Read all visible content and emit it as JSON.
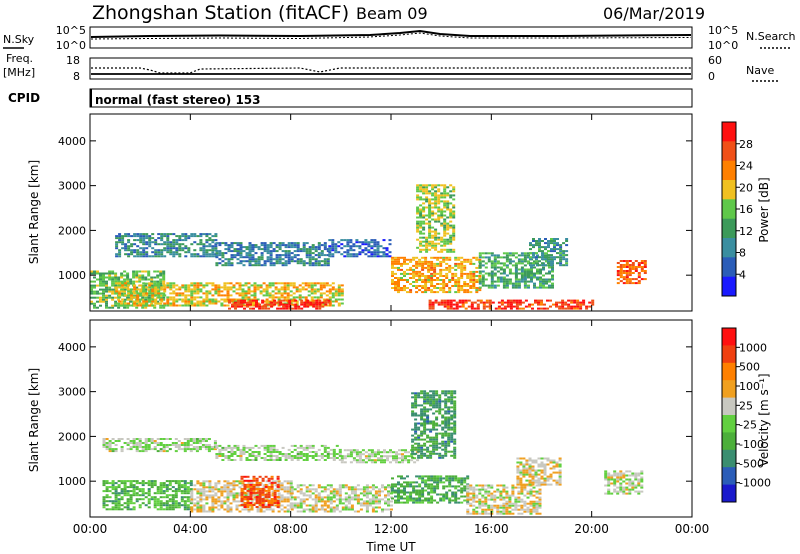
{
  "header": {
    "station": "Zhongshan Station (fitACF)",
    "beam": "Beam 09",
    "date": "06/Mar/2019"
  },
  "strip1": {
    "left_label": "N.Sky",
    "right_label": "N.Search",
    "left_ticks": [
      "10^5",
      "10^0"
    ],
    "right_ticks": [
      "10^5",
      "10^0"
    ]
  },
  "strip2": {
    "left_label_1": "Freq.",
    "left_label_2": "[MHz]",
    "right_label": "Nave",
    "left_ticks": [
      "18",
      "8"
    ],
    "right_ticks": [
      "60",
      "0"
    ]
  },
  "cpid": {
    "label": "CPID",
    "text": "normal (fast stereo) 153"
  },
  "colors": {
    "power_scale": [
      "#1a1aff",
      "#2b5db8",
      "#3a8ea0",
      "#3c9a5a",
      "#5fc84a",
      "#f0c020",
      "#ff8000",
      "#f05018",
      "#ff1010"
    ],
    "velocity_scale": [
      "#1a1acc",
      "#2b5db8",
      "#3a8e70",
      "#4caf3a",
      "#62d040",
      "#c8c8c0",
      "#f0a020",
      "#ff8000",
      "#f04010",
      "#ff1010"
    ]
  },
  "chart_data": [
    {
      "type": "heatmap",
      "title": "",
      "ylabel": "Slant Range [km]",
      "xlabel": "",
      "x_ticks": [
        "00:00",
        "04:00",
        "08:00",
        "12:00",
        "16:00",
        "20:00",
        "00:00"
      ],
      "y_ticks": [
        "1000",
        "2000",
        "3000",
        "4000"
      ],
      "xlim": [
        "00:00",
        "24:00"
      ],
      "ylim": [
        200,
        4600
      ],
      "colorbar": {
        "label": "Power [dB]",
        "ticks": [
          "28",
          "24",
          "20",
          "16",
          "12",
          "8",
          "4"
        ],
        "range": [
          0,
          30
        ]
      },
      "regions": [
        {
          "t0": 0.0,
          "t1": 3.0,
          "r0": 250,
          "r1": 1100,
          "level": 14
        },
        {
          "t0": 1.0,
          "t1": 10.0,
          "r0": 300,
          "r1": 800,
          "level": 18
        },
        {
          "t0": 5.5,
          "t1": 9.5,
          "r0": 230,
          "r1": 450,
          "level": 27
        },
        {
          "t0": 1.0,
          "t1": 5.0,
          "r0": 1400,
          "r1": 1900,
          "level": 9
        },
        {
          "t0": 5.0,
          "t1": 9.5,
          "r0": 1200,
          "r1": 1700,
          "level": 8
        },
        {
          "t0": 9.5,
          "t1": 12.0,
          "r0": 1400,
          "r1": 1800,
          "level": 6
        },
        {
          "t0": 12.0,
          "t1": 15.5,
          "r0": 600,
          "r1": 1400,
          "level": 20
        },
        {
          "t0": 13.5,
          "t1": 20.0,
          "r0": 230,
          "r1": 450,
          "level": 26
        },
        {
          "t0": 13.0,
          "t1": 14.5,
          "r0": 1500,
          "r1": 3000,
          "level": 16
        },
        {
          "t0": 15.5,
          "t1": 18.5,
          "r0": 700,
          "r1": 1500,
          "level": 12
        },
        {
          "t0": 17.5,
          "t1": 19.0,
          "r0": 1200,
          "r1": 1800,
          "level": 10
        },
        {
          "t0": 21.0,
          "t1": 22.2,
          "r0": 800,
          "r1": 1300,
          "level": 24
        }
      ]
    },
    {
      "type": "heatmap",
      "title": "",
      "ylabel": "Slant Range [km]",
      "xlabel": "Time UT",
      "x_ticks": [
        "00:00",
        "04:00",
        "08:00",
        "12:00",
        "16:00",
        "20:00",
        "00:00"
      ],
      "y_ticks": [
        "1000",
        "2000",
        "3000",
        "4000"
      ],
      "xlim": [
        "00:00",
        "24:00"
      ],
      "ylim": [
        200,
        4600
      ],
      "colorbar": {
        "label": "Velocity [m s⁻¹]",
        "ticks": [
          "1000",
          "500",
          "100",
          "25",
          "-25",
          "-100",
          "-500",
          "-1000"
        ],
        "range": [
          -1200,
          1200
        ]
      },
      "regions": [
        {
          "t0": 0.5,
          "t1": 5.0,
          "r0": 1650,
          "r1": 1950,
          "level": 0
        },
        {
          "t0": 5.0,
          "t1": 10.0,
          "r0": 1450,
          "r1": 1800,
          "level": 0
        },
        {
          "t0": 10.0,
          "t1": 13.0,
          "r0": 1400,
          "r1": 1700,
          "level": 0
        },
        {
          "t0": 0.5,
          "t1": 4.0,
          "r0": 350,
          "r1": 1000,
          "level": -300
        },
        {
          "t0": 4.0,
          "t1": 8.0,
          "r0": 300,
          "r1": 1000,
          "level": 200
        },
        {
          "t0": 6.0,
          "t1": 7.5,
          "r0": 400,
          "r1": 1100,
          "level": 800
        },
        {
          "t0": 8.0,
          "t1": 12.0,
          "r0": 300,
          "r1": 900,
          "level": 100
        },
        {
          "t0": 12.0,
          "t1": 15.0,
          "r0": 500,
          "r1": 1100,
          "level": -400
        },
        {
          "t0": 12.8,
          "t1": 14.5,
          "r0": 1500,
          "r1": 3000,
          "level": -500
        },
        {
          "t0": 15.0,
          "t1": 18.0,
          "r0": 250,
          "r1": 900,
          "level": 150
        },
        {
          "t0": 17.0,
          "t1": 18.8,
          "r0": 900,
          "r1": 1500,
          "level": 200
        },
        {
          "t0": 20.5,
          "t1": 22.0,
          "r0": 700,
          "r1": 1200,
          "level": 50
        }
      ]
    }
  ]
}
